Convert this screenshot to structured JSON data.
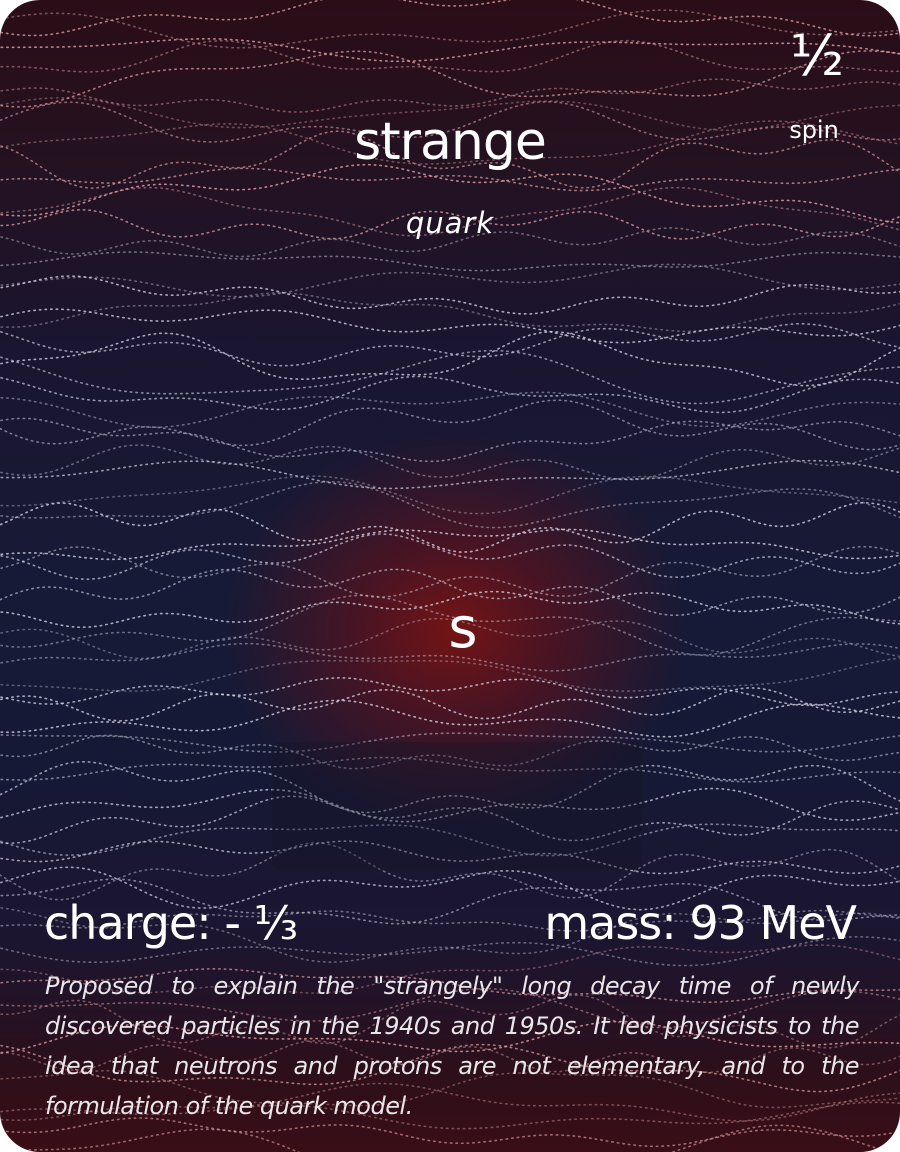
{
  "card": {
    "name": "strange",
    "type": "quark",
    "spin_value": "½",
    "spin_label": "spin",
    "symbol": "s",
    "charge": "charge: - ⅓",
    "mass": "mass: 93 MeV",
    "description": "Proposed to explain the \"strangely\" long decay time of newly discovered particles in the 1940s and 1950s. It led physicists to the idea that neutrons and protons are not elementary, and  to the formulation of the quark model."
  },
  "colors": {
    "accent": "#7a1414",
    "background_top": "#2a0d17",
    "background_middle": "#171a36",
    "background_bottom": "#3a0e16",
    "text": "#ffffff"
  }
}
